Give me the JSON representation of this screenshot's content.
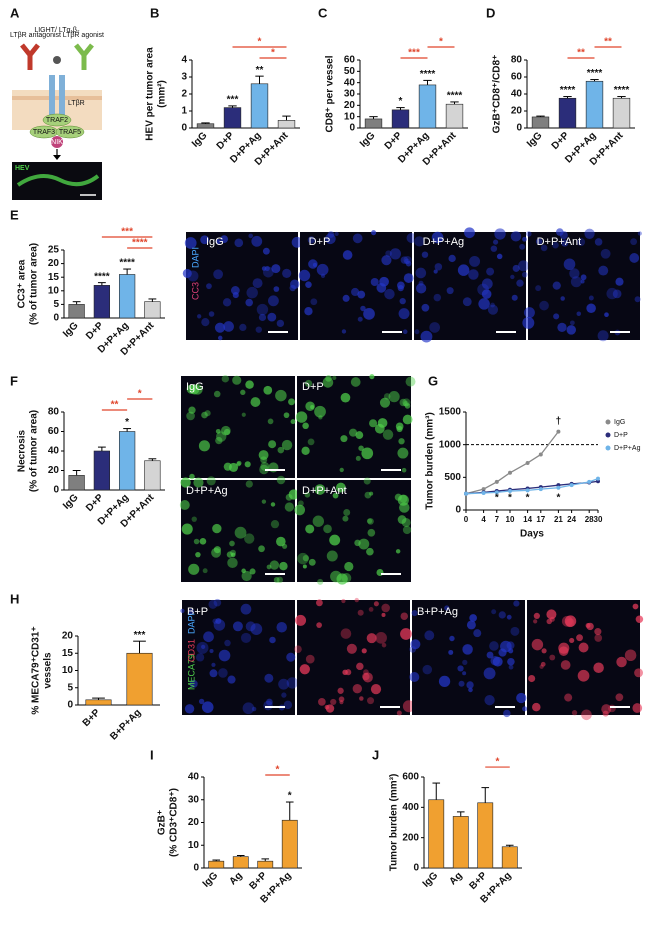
{
  "panel_a": {
    "letter": "A",
    "labels": [
      "LTβR antagonist",
      "LIGHT/ LTα₁β₂",
      "LTβR agonist",
      "LTβR",
      "TRAF2",
      "TRAF3",
      "TRAF5",
      "NIK",
      "HEV"
    ]
  },
  "chart_data": [
    {
      "type": "bar",
      "panel": "B",
      "ylabel": [
        "HEV per tumor area",
        "(mm²)"
      ],
      "categories": [
        "IgG",
        "D+P",
        "D+P+Ag",
        "D+P+Ant"
      ],
      "values": [
        0.25,
        1.2,
        2.6,
        0.45
      ],
      "errors": [
        0.05,
        0.1,
        0.45,
        0.25
      ],
      "colors": [
        "#7f7f7f",
        "#2b2d7a",
        "#6fb4e8",
        "#d4d4d4"
      ],
      "ylim": [
        0,
        4
      ],
      "yticks": [
        0,
        1,
        2,
        3,
        4
      ],
      "stars": [
        null,
        "***",
        "**",
        null
      ],
      "brackets": [
        {
          "between": [
            2,
            3
          ],
          "label": "*"
        },
        {
          "between": [
            1,
            3
          ],
          "label": "*"
        }
      ],
      "bracket_color": "#e0452b"
    },
    {
      "type": "bar",
      "panel": "C",
      "ylabel": [
        "CD8⁺ per vessel"
      ],
      "categories": [
        "IgG",
        "D+P",
        "D+P+Ag",
        "D+P+Ant"
      ],
      "values": [
        8,
        16,
        38,
        21
      ],
      "errors": [
        2,
        2,
        4,
        2
      ],
      "colors": [
        "#7f7f7f",
        "#2b2d7a",
        "#6fb4e8",
        "#d4d4d4"
      ],
      "ylim": [
        0,
        60
      ],
      "yticks": [
        0,
        10,
        20,
        30,
        40,
        50,
        60
      ],
      "stars": [
        null,
        "*",
        "****",
        "****"
      ],
      "brackets": [
        {
          "between": [
            1,
            2
          ],
          "label": "***"
        },
        {
          "between": [
            2,
            3
          ],
          "label": "*"
        }
      ],
      "bracket_color": "#e0452b"
    },
    {
      "type": "bar",
      "panel": "D",
      "ylabel": [
        "GzB⁺CD8⁺/CD8⁺"
      ],
      "categories": [
        "IgG",
        "D+P",
        "D+P+Ag",
        "D+P+Ant"
      ],
      "values": [
        13,
        35,
        55,
        35
      ],
      "errors": [
        1,
        2,
        2,
        2
      ],
      "colors": [
        "#7f7f7f",
        "#2b2d7a",
        "#6fb4e8",
        "#d4d4d4"
      ],
      "ylim": [
        0,
        80
      ],
      "yticks": [
        0,
        20,
        40,
        60,
        80
      ],
      "stars": [
        null,
        "****",
        "****",
        "****"
      ],
      "brackets": [
        {
          "between": [
            1,
            2
          ],
          "label": "**"
        },
        {
          "between": [
            2,
            3
          ],
          "label": "**"
        }
      ],
      "bracket_color": "#e0452b"
    },
    {
      "type": "bar",
      "panel": "E",
      "ylabel": [
        "CC3⁺ area",
        "(% of tumor area)"
      ],
      "categories": [
        "IgG",
        "D+P",
        "D+P+Ag",
        "D+P+Ant"
      ],
      "values": [
        5,
        12,
        16,
        6
      ],
      "errors": [
        1,
        1,
        2,
        1
      ],
      "colors": [
        "#7f7f7f",
        "#2b2d7a",
        "#6fb4e8",
        "#d4d4d4"
      ],
      "ylim": [
        0,
        25
      ],
      "yticks": [
        0,
        5,
        10,
        15,
        20,
        25
      ],
      "stars": [
        null,
        "****",
        "****",
        null
      ],
      "brackets": [
        {
          "between": [
            2,
            3
          ],
          "label": "****"
        },
        {
          "between": [
            1,
            3
          ],
          "label": "***"
        }
      ],
      "bracket_color": "#e0452b"
    },
    {
      "type": "bar",
      "panel": "F",
      "ylabel": [
        "Necrosis",
        "(% of tumor area)"
      ],
      "categories": [
        "IgG",
        "D+P",
        "D+P+Ag",
        "D+P+Ant"
      ],
      "values": [
        15,
        40,
        60,
        30
      ],
      "errors": [
        5,
        4,
        3,
        2
      ],
      "colors": [
        "#7f7f7f",
        "#2b2d7a",
        "#6fb4e8",
        "#d4d4d4"
      ],
      "ylim": [
        0,
        80
      ],
      "yticks": [
        0,
        20,
        40,
        60,
        80
      ],
      "stars": [
        null,
        null,
        "*",
        null
      ],
      "brackets": [
        {
          "between": [
            1,
            2
          ],
          "label": "**"
        },
        {
          "between": [
            2,
            3
          ],
          "label": "*"
        }
      ],
      "bracket_color": "#e0452b"
    },
    {
      "type": "line",
      "panel": "G",
      "ylabel": [
        "Tumor burden (mm³)"
      ],
      "xlabel": "Days",
      "x": [
        0,
        4,
        7,
        10,
        14,
        17,
        21,
        24,
        28,
        30
      ],
      "xlim": [
        0,
        30
      ],
      "xticks": [
        0,
        4,
        7,
        10,
        14,
        17,
        21,
        24,
        28,
        30
      ],
      "ylim": [
        0,
        1500
      ],
      "yticks": [
        0,
        500,
        1000,
        1500
      ],
      "reference_line": 1000,
      "legend": "right",
      "series": [
        {
          "name": "IgG",
          "color": "#8a8a8a",
          "values": [
            250,
            320,
            430,
            570,
            720,
            850,
            1200,
            null,
            null,
            null
          ]
        },
        {
          "name": "D+P",
          "color": "#2b2d7a",
          "values": [
            250,
            270,
            290,
            310,
            330,
            350,
            380,
            400,
            420,
            440
          ]
        },
        {
          "name": "D+P+Ag",
          "color": "#6fb4e8",
          "values": [
            250,
            260,
            270,
            290,
            300,
            320,
            340,
            380,
            430,
            480
          ]
        }
      ],
      "annotations": [
        {
          "x": 21,
          "label": "†",
          "position": "above"
        },
        {
          "x": 7,
          "label": "*",
          "position": "below"
        },
        {
          "x": 10,
          "label": "*",
          "position": "below"
        },
        {
          "x": 14,
          "label": "*",
          "position": "below"
        },
        {
          "x": 21,
          "label": "*",
          "position": "below"
        }
      ]
    },
    {
      "type": "bar",
      "panel": "H",
      "ylabel": [
        "% MECA79⁺CD31⁺",
        "vessels"
      ],
      "categories": [
        "B+P",
        "B+P+Ag"
      ],
      "values": [
        1.5,
        15
      ],
      "errors": [
        0.5,
        3.5
      ],
      "colors": [
        "#f0a030",
        "#f0a030"
      ],
      "ylim": [
        0,
        20
      ],
      "yticks": [
        0,
        5,
        10,
        15,
        20
      ],
      "stars": [
        null,
        "***"
      ],
      "brackets": [],
      "bracket_color": "#e0452b"
    },
    {
      "type": "bar",
      "panel": "I",
      "ylabel": [
        "GzB⁺",
        "(% CD3⁺CD8⁺)"
      ],
      "categories": [
        "IgG",
        "Ag",
        "B+P",
        "B+P+Ag"
      ],
      "values": [
        3,
        5,
        3,
        21
      ],
      "errors": [
        0.5,
        0.5,
        1,
        8
      ],
      "colors": [
        "#f0a030",
        "#f0a030",
        "#f0a030",
        "#f0a030"
      ],
      "ylim": [
        0,
        40
      ],
      "yticks": [
        0,
        10,
        20,
        30,
        40
      ],
      "stars": [
        null,
        null,
        null,
        "*"
      ],
      "brackets": [
        {
          "between": [
            2,
            3
          ],
          "label": "*"
        }
      ],
      "bracket_color": "#e0452b"
    },
    {
      "type": "bar",
      "panel": "J",
      "ylabel": [
        "Tumor burden (mm³)"
      ],
      "categories": [
        "IgG",
        "Ag",
        "B+P",
        "B+P+Ag"
      ],
      "values": [
        450,
        340,
        430,
        140
      ],
      "errors": [
        110,
        30,
        100,
        10
      ],
      "colors": [
        "#f0a030",
        "#f0a030",
        "#f0a030",
        "#f0a030"
      ],
      "ylim": [
        0,
        600
      ],
      "yticks": [
        0,
        200,
        400,
        600
      ],
      "stars": [
        null,
        null,
        null,
        null
      ],
      "brackets": [
        {
          "between": [
            2,
            3
          ],
          "label": "*"
        }
      ],
      "bracket_color": "#e0452b"
    }
  ],
  "image_panels": [
    {
      "labels": [
        "IgG",
        "D+P",
        "D+P+Ag",
        "D+P+Ant"
      ],
      "stains": [
        "DAPI",
        "CC3"
      ]
    },
    {
      "labels": [
        "IgG",
        "D+P",
        "D+P+Ag",
        "D+P+Ant"
      ]
    },
    {
      "labels": [
        "B+P",
        "B+P+Ag"
      ],
      "stains": [
        "MECA79",
        "CD31",
        "DAPI"
      ]
    }
  ]
}
